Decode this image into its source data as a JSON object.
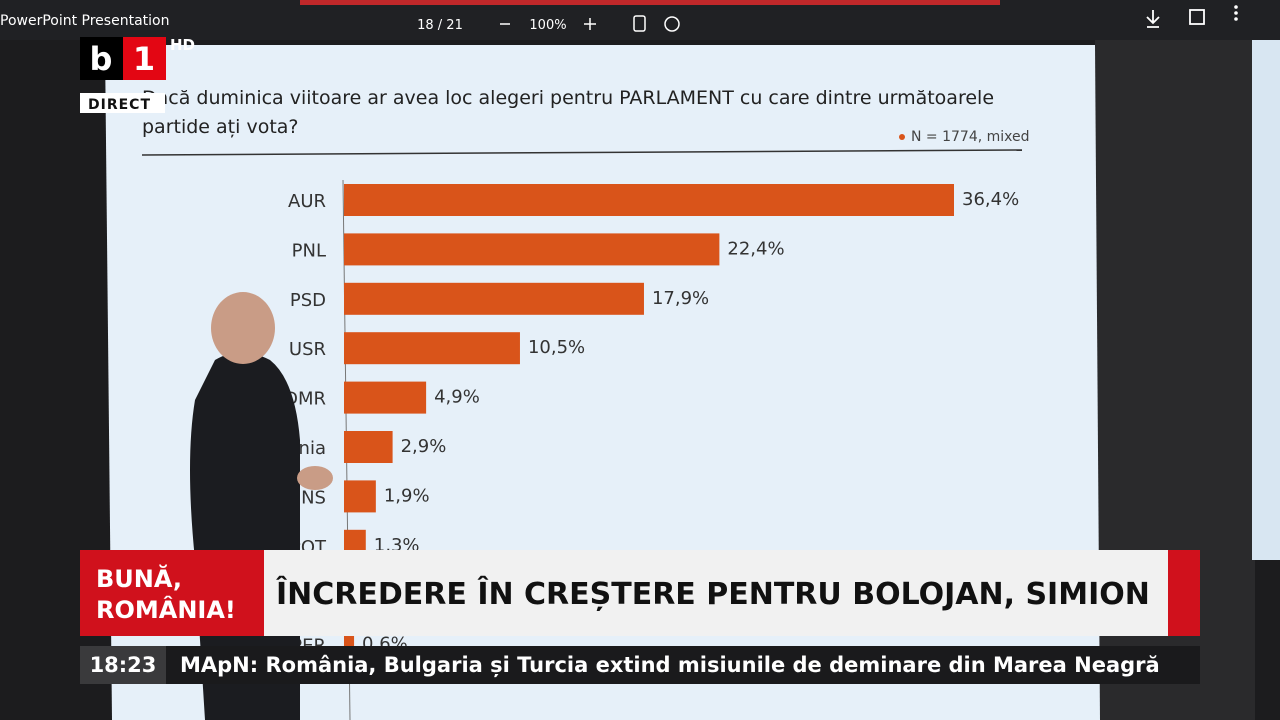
{
  "app": {
    "title": "PowerPoint Presentation",
    "page": "18 / 21",
    "zoom": "100%"
  },
  "channel": {
    "logo_b": "b",
    "logo_1": "1",
    "hd": "HD",
    "live": "DIRECT"
  },
  "slide": {
    "question_lines": [
      "Dacă duminica viitoare ar avea loc alegeri pentru PARLAMENT cu care dintre următoarele",
      "partide ați vota?"
    ],
    "note": "N = 1774, mixed"
  },
  "chart_data": {
    "type": "bar",
    "orientation": "horizontal",
    "color": "#d9541a",
    "categories": [
      "AUR",
      "PNL",
      "PSD",
      "USR",
      "UDMR",
      "ânia",
      "SENS",
      "POT",
      null,
      "REPER"
    ],
    "values": [
      36.4,
      22.4,
      17.9,
      10.5,
      4.9,
      2.9,
      1.9,
      1.3,
      null,
      0.6
    ],
    "value_labels": [
      "36,4%",
      "22,4%",
      "17,9%",
      "10,5%",
      "4,9%",
      "2,9%",
      "1,9%",
      "1,3%",
      null,
      "0,6%"
    ]
  },
  "broadcast": {
    "show_lines": [
      "BUNĂ,",
      "ROMÂNIA!"
    ],
    "headline": "ÎNCREDERE ÎN CREȘTERE PENTRU BOLOJAN, SIMION",
    "time": "18:23",
    "ticker": "MApN: România, Bulgaria și Turcia extind misiunile de deminare din Marea Neagră"
  }
}
